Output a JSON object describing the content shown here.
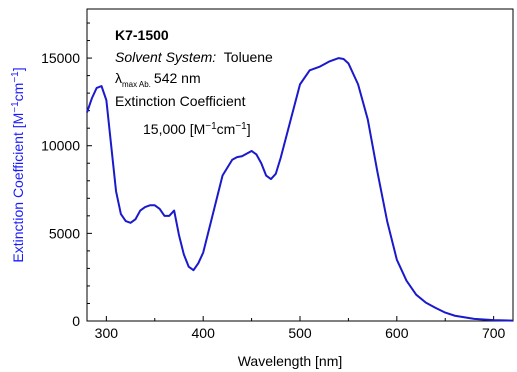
{
  "chart_data": {
    "type": "line",
    "title": "",
    "xlabel": "Wavelength [nm]",
    "ylabel": "Extinction Coefficient [M⁻¹cm⁻¹]",
    "xlim": [
      280,
      720
    ],
    "ylim": [
      0,
      17800
    ],
    "xticks": [
      300,
      400,
      500,
      600,
      700
    ],
    "yticks": [
      0,
      5000,
      10000,
      15000
    ],
    "grid": false,
    "line_color": "#1a1acc",
    "ylabel_color": "#1a1aff",
    "series": [
      {
        "x": [
          280,
          285,
          290,
          295,
          300,
          305,
          310,
          315,
          320,
          325,
          330,
          335,
          340,
          345,
          350,
          355,
          360,
          365,
          370,
          375,
          380,
          385,
          390,
          395,
          400,
          410,
          420,
          430,
          435,
          440,
          445,
          450,
          455,
          460,
          465,
          470,
          475,
          480,
          490,
          500,
          510,
          520,
          530,
          540,
          545,
          550,
          560,
          570,
          580,
          590,
          600,
          610,
          620,
          630,
          640,
          650,
          660,
          680,
          700,
          720
        ],
        "y": [
          11900,
          12700,
          13300,
          13400,
          12600,
          10000,
          7400,
          6100,
          5700,
          5600,
          5800,
          6300,
          6500,
          6600,
          6600,
          6400,
          6000,
          6000,
          6300,
          4900,
          3800,
          3100,
          2900,
          3300,
          3900,
          6100,
          8300,
          9200,
          9350,
          9400,
          9550,
          9700,
          9500,
          9000,
          8300,
          8100,
          8400,
          9300,
          11400,
          13500,
          14300,
          14500,
          14800,
          15000,
          14950,
          14700,
          13500,
          11500,
          8500,
          5700,
          3500,
          2300,
          1500,
          1050,
          750,
          480,
          300,
          120,
          50,
          20
        ]
      }
    ],
    "annotations": {
      "compound": "K7-1500",
      "solvent_label": "Solvent System:",
      "solvent_value": "Toluene",
      "lambda_symbol": "λ",
      "lambda_sub": "max Ab.",
      "lambda_value": "542 nm",
      "ext_label": "Extinction Coefficient",
      "ext_value_num": "15,000 [M",
      "ext_exp1": "−1",
      "ext_mid": "cm",
      "ext_exp2": "−1",
      "ext_close": "]"
    },
    "ylabel_parts": {
      "base": "Extinction Coefficient [M",
      "exp1": "−1",
      "mid": "cm",
      "exp2": "−1",
      "close": "]"
    }
  }
}
